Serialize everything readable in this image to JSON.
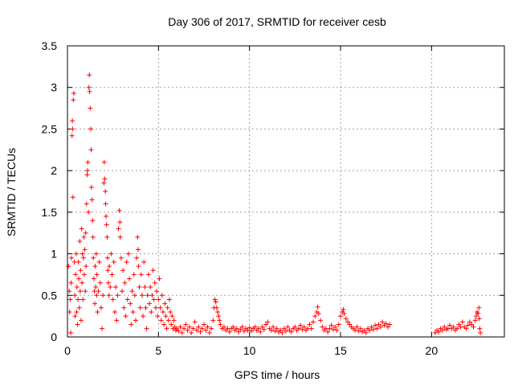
{
  "chart_data": {
    "type": "scatter",
    "title": "Day 306 of 2017, SRMTID for receiver cesb",
    "xlabel": "GPS time / hours",
    "ylabel": "SRMTID / TECUs",
    "xlim": [
      0,
      24
    ],
    "ylim": [
      0,
      3.5
    ],
    "xticks": [
      0,
      5,
      10,
      15,
      20
    ],
    "xtick_labels": [
      "0",
      "5",
      "10",
      "15",
      "20"
    ],
    "yticks": [
      0,
      0.5,
      1,
      1.5,
      2,
      2.5,
      3,
      3.5
    ],
    "ytick_labels": [
      "0",
      "0.5",
      "1",
      "1.5",
      "2",
      "2.5",
      "3",
      "3.5"
    ],
    "grid": true,
    "marker": "plus",
    "color": "#ff0000",
    "series": [
      {
        "name": "SRMTID",
        "points": [
          [
            0.05,
            0.85
          ],
          [
            0.1,
            0.55
          ],
          [
            0.12,
            0.3
          ],
          [
            0.15,
            0.45
          ],
          [
            0.18,
            0.05
          ],
          [
            0.2,
            0.65
          ],
          [
            0.22,
            0.95
          ],
          [
            0.25,
            2.42
          ],
          [
            0.27,
            2.6
          ],
          [
            0.28,
            2.5
          ],
          [
            0.3,
            1.68
          ],
          [
            0.32,
            2.85
          ],
          [
            0.35,
            2.93
          ],
          [
            0.38,
            0.9
          ],
          [
            0.4,
            0.5
          ],
          [
            0.42,
            0.25
          ],
          [
            0.45,
            0.75
          ],
          [
            0.48,
            1.0
          ],
          [
            0.5,
            0.3
          ],
          [
            0.52,
            0.6
          ],
          [
            0.55,
            0.15
          ],
          [
            0.58,
            0.45
          ],
          [
            0.6,
            0.9
          ],
          [
            0.62,
            0.7
          ],
          [
            0.65,
            0.35
          ],
          [
            0.68,
            1.15
          ],
          [
            0.7,
            0.55
          ],
          [
            0.72,
            0.8
          ],
          [
            0.75,
            0.2
          ],
          [
            0.78,
            1.3
          ],
          [
            0.8,
            0.65
          ],
          [
            0.82,
            1.0
          ],
          [
            0.85,
            0.45
          ],
          [
            0.88,
            0.95
          ],
          [
            0.9,
            1.2
          ],
          [
            0.92,
            0.75
          ],
          [
            0.95,
            1.05
          ],
          [
            0.98,
            0.55
          ],
          [
            1.0,
            1.25
          ],
          [
            1.02,
            0.85
          ],
          [
            1.05,
            1.6
          ],
          [
            1.08,
            1.95
          ],
          [
            1.1,
            2.0
          ],
          [
            1.12,
            2.1
          ],
          [
            1.15,
            1.5
          ],
          [
            1.18,
            3.0
          ],
          [
            1.2,
            3.15
          ],
          [
            1.22,
            2.95
          ],
          [
            1.25,
            2.75
          ],
          [
            1.28,
            2.5
          ],
          [
            1.3,
            2.25
          ],
          [
            1.32,
            1.8
          ],
          [
            1.35,
            1.65
          ],
          [
            1.38,
            1.4
          ],
          [
            1.4,
            1.2
          ],
          [
            1.42,
            0.95
          ],
          [
            1.45,
            0.7
          ],
          [
            1.48,
            0.55
          ],
          [
            1.5,
            0.4
          ],
          [
            1.52,
            0.85
          ],
          [
            1.55,
            0.6
          ],
          [
            1.58,
            1.0
          ],
          [
            1.6,
            0.5
          ],
          [
            1.62,
            0.75
          ],
          [
            1.65,
            0.3
          ],
          [
            1.7,
            0.55
          ],
          [
            1.75,
            0.9
          ],
          [
            1.8,
            0.65
          ],
          [
            1.85,
            0.35
          ],
          [
            1.9,
            0.1
          ],
          [
            1.95,
            0.5
          ],
          [
            2.0,
            1.85
          ],
          [
            2.02,
            2.1
          ],
          [
            2.05,
            1.9
          ],
          [
            2.08,
            1.75
          ],
          [
            2.1,
            1.6
          ],
          [
            2.12,
            1.45
          ],
          [
            2.15,
            1.35
          ],
          [
            2.18,
            1.2
          ],
          [
            2.2,
            0.95
          ],
          [
            2.22,
            0.8
          ],
          [
            2.25,
            0.65
          ],
          [
            2.28,
            0.5
          ],
          [
            2.3,
            0.85
          ],
          [
            2.35,
            0.6
          ],
          [
            2.4,
            1.0
          ],
          [
            2.45,
            0.75
          ],
          [
            2.5,
            0.45
          ],
          [
            2.55,
            0.9
          ],
          [
            2.6,
            0.3
          ],
          [
            2.65,
            0.6
          ],
          [
            2.7,
            0.2
          ],
          [
            2.75,
            0.5
          ],
          [
            2.8,
            1.3
          ],
          [
            2.85,
            1.52
          ],
          [
            2.88,
            1.38
          ],
          [
            2.9,
            1.2
          ],
          [
            2.95,
            0.95
          ],
          [
            3.0,
            0.55
          ],
          [
            3.05,
            0.8
          ],
          [
            3.1,
            0.35
          ],
          [
            3.15,
            0.65
          ],
          [
            3.2,
            0.25
          ],
          [
            3.25,
            0.9
          ],
          [
            3.3,
            0.45
          ],
          [
            3.35,
            1.0
          ],
          [
            3.4,
            0.7
          ],
          [
            3.45,
            0.4
          ],
          [
            3.5,
            0.15
          ],
          [
            3.55,
            0.55
          ],
          [
            3.6,
            0.3
          ],
          [
            3.65,
            0.75
          ],
          [
            3.7,
            0.5
          ],
          [
            3.75,
            0.2
          ],
          [
            3.8,
            0.95
          ],
          [
            3.85,
            1.2
          ],
          [
            3.88,
            1.05
          ],
          [
            3.9,
            0.85
          ],
          [
            3.95,
            0.6
          ],
          [
            4.0,
            0.35
          ],
          [
            4.05,
            0.75
          ],
          [
            4.1,
            0.5
          ],
          [
            4.15,
            0.25
          ],
          [
            4.2,
            0.9
          ],
          [
            4.25,
            0.6
          ],
          [
            4.3,
            0.35
          ],
          [
            4.35,
            0.1
          ],
          [
            4.4,
            0.5
          ],
          [
            4.45,
            0.75
          ],
          [
            4.5,
            0.4
          ],
          [
            4.55,
            0.6
          ],
          [
            4.6,
            0.3
          ],
          [
            4.65,
            0.5
          ],
          [
            4.7,
            0.8
          ],
          [
            4.75,
            0.45
          ],
          [
            4.8,
            0.65
          ],
          [
            4.85,
            0.35
          ],
          [
            4.9,
            0.55
          ],
          [
            4.95,
            0.25
          ],
          [
            5.0,
            0.45
          ],
          [
            5.05,
            0.7
          ],
          [
            5.1,
            0.35
          ],
          [
            5.15,
            0.2
          ],
          [
            5.2,
            0.5
          ],
          [
            5.25,
            0.3
          ],
          [
            5.3,
            0.15
          ],
          [
            5.35,
            0.4
          ],
          [
            5.4,
            0.25
          ],
          [
            5.45,
            0.1
          ],
          [
            5.5,
            0.35
          ],
          [
            5.55,
            0.2
          ],
          [
            5.6,
            0.45
          ],
          [
            5.65,
            0.3
          ],
          [
            5.7,
            0.15
          ],
          [
            5.75,
            0.25
          ],
          [
            5.8,
            0.1
          ],
          [
            5.85,
            0.2
          ],
          [
            5.9,
            0.12
          ],
          [
            5.95,
            0.08
          ],
          [
            6.0,
            0.1
          ],
          [
            6.1,
            0.07
          ],
          [
            6.2,
            0.12
          ],
          [
            6.3,
            0.05
          ],
          [
            6.4,
            0.1
          ],
          [
            6.5,
            0.15
          ],
          [
            6.6,
            0.08
          ],
          [
            6.7,
            0.12
          ],
          [
            6.8,
            0.05
          ],
          [
            6.9,
            0.1
          ],
          [
            7.0,
            0.18
          ],
          [
            7.1,
            0.08
          ],
          [
            7.2,
            0.12
          ],
          [
            7.3,
            0.06
          ],
          [
            7.4,
            0.1
          ],
          [
            7.5,
            0.15
          ],
          [
            7.6,
            0.08
          ],
          [
            7.7,
            0.12
          ],
          [
            7.8,
            0.05
          ],
          [
            7.9,
            0.1
          ],
          [
            8.0,
            0.2
          ],
          [
            8.05,
            0.35
          ],
          [
            8.1,
            0.45
          ],
          [
            8.15,
            0.42
          ],
          [
            8.2,
            0.35
          ],
          [
            8.25,
            0.3
          ],
          [
            8.3,
            0.25
          ],
          [
            8.35,
            0.2
          ],
          [
            8.4,
            0.15
          ],
          [
            8.5,
            0.1
          ],
          [
            8.6,
            0.12
          ],
          [
            8.7,
            0.08
          ],
          [
            8.8,
            0.1
          ],
          [
            8.9,
            0.06
          ],
          [
            9.0,
            0.1
          ],
          [
            9.1,
            0.12
          ],
          [
            9.2,
            0.08
          ],
          [
            9.3,
            0.1
          ],
          [
            9.4,
            0.06
          ],
          [
            9.5,
            0.09
          ],
          [
            9.6,
            0.12
          ],
          [
            9.7,
            0.07
          ],
          [
            9.8,
            0.1
          ],
          [
            9.9,
            0.08
          ],
          [
            10.0,
            0.11
          ],
          [
            10.1,
            0.07
          ],
          [
            10.2,
            0.1
          ],
          [
            10.3,
            0.12
          ],
          [
            10.4,
            0.08
          ],
          [
            10.5,
            0.1
          ],
          [
            10.6,
            0.06
          ],
          [
            10.7,
            0.12
          ],
          [
            10.8,
            0.09
          ],
          [
            10.9,
            0.15
          ],
          [
            11.0,
            0.18
          ],
          [
            11.1,
            0.1
          ],
          [
            11.2,
            0.08
          ],
          [
            11.3,
            0.12
          ],
          [
            11.4,
            0.07
          ],
          [
            11.5,
            0.1
          ],
          [
            11.6,
            0.06
          ],
          [
            11.7,
            0.08
          ],
          [
            11.8,
            0.05
          ],
          [
            11.9,
            0.1
          ],
          [
            12.0,
            0.07
          ],
          [
            12.1,
            0.12
          ],
          [
            12.2,
            0.08
          ],
          [
            12.3,
            0.06
          ],
          [
            12.4,
            0.1
          ],
          [
            12.5,
            0.12
          ],
          [
            12.6,
            0.08
          ],
          [
            12.7,
            0.1
          ],
          [
            12.8,
            0.14
          ],
          [
            12.9,
            0.09
          ],
          [
            13.0,
            0.12
          ],
          [
            13.1,
            0.08
          ],
          [
            13.2,
            0.1
          ],
          [
            13.3,
            0.15
          ],
          [
            13.4,
            0.1
          ],
          [
            13.5,
            0.18
          ],
          [
            13.6,
            0.25
          ],
          [
            13.7,
            0.3
          ],
          [
            13.75,
            0.36
          ],
          [
            13.8,
            0.28
          ],
          [
            13.9,
            0.2
          ],
          [
            14.0,
            0.12
          ],
          [
            14.1,
            0.08
          ],
          [
            14.2,
            0.1
          ],
          [
            14.3,
            0.06
          ],
          [
            14.4,
            0.1
          ],
          [
            14.5,
            0.14
          ],
          [
            14.6,
            0.09
          ],
          [
            14.7,
            0.12
          ],
          [
            14.8,
            0.08
          ],
          [
            14.9,
            0.15
          ],
          [
            15.0,
            0.25
          ],
          [
            15.1,
            0.3
          ],
          [
            15.15,
            0.33
          ],
          [
            15.2,
            0.28
          ],
          [
            15.3,
            0.22
          ],
          [
            15.4,
            0.18
          ],
          [
            15.5,
            0.15
          ],
          [
            15.6,
            0.12
          ],
          [
            15.7,
            0.1
          ],
          [
            15.8,
            0.08
          ],
          [
            15.9,
            0.12
          ],
          [
            16.0,
            0.07
          ],
          [
            16.1,
            0.1
          ],
          [
            16.2,
            0.06
          ],
          [
            16.3,
            0.08
          ],
          [
            16.4,
            0.05
          ],
          [
            16.5,
            0.1
          ],
          [
            16.6,
            0.08
          ],
          [
            16.7,
            0.12
          ],
          [
            16.8,
            0.09
          ],
          [
            16.9,
            0.14
          ],
          [
            17.0,
            0.1
          ],
          [
            17.1,
            0.15
          ],
          [
            17.2,
            0.12
          ],
          [
            17.3,
            0.18
          ],
          [
            17.4,
            0.14
          ],
          [
            17.5,
            0.16
          ],
          [
            17.6,
            0.12
          ],
          [
            17.7,
            0.15
          ],
          [
            20.2,
            0.05
          ],
          [
            20.3,
            0.08
          ],
          [
            20.4,
            0.06
          ],
          [
            20.5,
            0.1
          ],
          [
            20.6,
            0.08
          ],
          [
            20.7,
            0.12
          ],
          [
            20.8,
            0.09
          ],
          [
            20.9,
            0.1
          ],
          [
            21.0,
            0.14
          ],
          [
            21.1,
            0.1
          ],
          [
            21.2,
            0.12
          ],
          [
            21.3,
            0.08
          ],
          [
            21.4,
            0.1
          ],
          [
            21.5,
            0.15
          ],
          [
            21.6,
            0.12
          ],
          [
            21.7,
            0.18
          ],
          [
            21.8,
            0.12
          ],
          [
            21.9,
            0.1
          ],
          [
            22.0,
            0.14
          ],
          [
            22.1,
            0.18
          ],
          [
            22.2,
            0.15
          ],
          [
            22.3,
            0.12
          ],
          [
            22.4,
            0.2
          ],
          [
            22.45,
            0.25
          ],
          [
            22.5,
            0.3
          ],
          [
            22.55,
            0.28
          ],
          [
            22.6,
            0.35
          ],
          [
            22.62,
            0.22
          ],
          [
            22.65,
            0.1
          ],
          [
            22.68,
            0.05
          ]
        ]
      }
    ]
  }
}
